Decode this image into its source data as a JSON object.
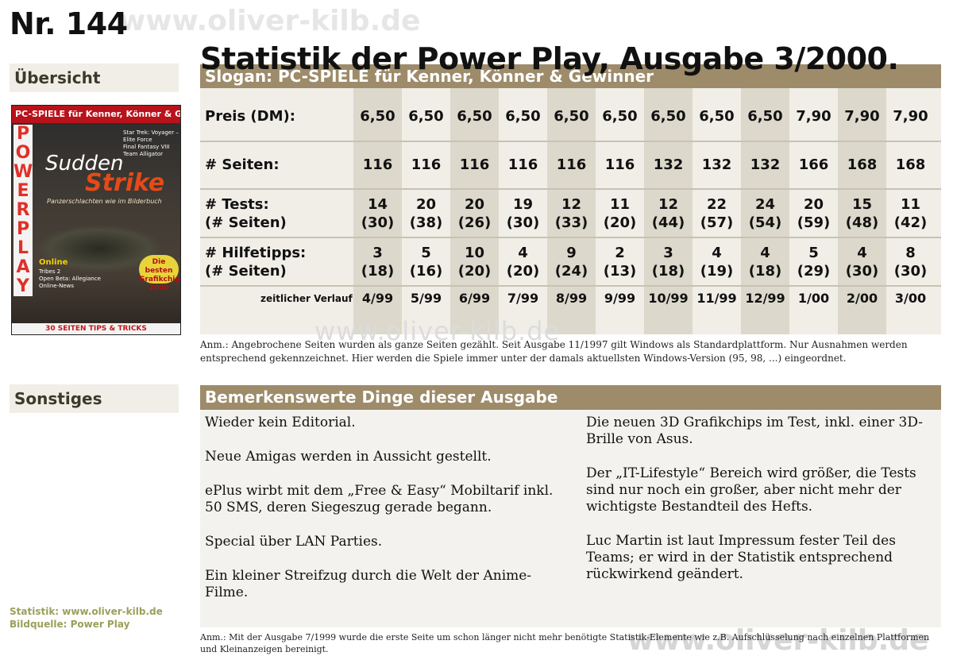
{
  "header": {
    "issue_no": "Nr. 144",
    "title": "Statistik der Power Play, Ausgabe 3/2000."
  },
  "sidebar": {
    "overview": "Übersicht",
    "misc": "Sonstiges",
    "credit_stats": "Statistik: www.oliver-kilb.de",
    "credit_image": "Bildquelle: Power Play"
  },
  "cover": {
    "band": "PC-SPIELE für Kenner, Könner & Gewinner",
    "magazine": [
      "P",
      "O",
      "W",
      "E",
      "R",
      "P",
      "L",
      "A",
      "Y"
    ],
    "headline1": "Sudden",
    "headline2": "Strike",
    "tagline": "Panzerschlachten wie im Bilderbuch",
    "side_items": [
      "Star Trek: Voyager – Elite Force",
      "Final Fantasy VIII",
      "Team Alligator"
    ],
    "online": "Online",
    "online_items": [
      "Tribes 2",
      "Open Beta: Allegiance",
      "Online-News"
    ],
    "badge": "Die besten Grafikchips 2000",
    "bottom": "30 SEITEN TIPS & TRICKS"
  },
  "stats": {
    "slogan": "Slogan: PC-SPIELE für Kenner, Könner & Gewinner",
    "row_price": "Preis (DM):",
    "row_pages": "# Seiten:",
    "row_tests_1": "# Tests:",
    "row_tests_2": "(# Seiten)",
    "row_tips_1": "# Hilfetipps:",
    "row_tips_2": "(# Seiten)",
    "timeline_label": "zeitlicher Verlauf",
    "columns": [
      {
        "issue": "4/99",
        "price": "6,50",
        "pages": "116",
        "tests": "14",
        "tests_pages": "(30)",
        "tips": "3",
        "tips_pages": "(18)"
      },
      {
        "issue": "5/99",
        "price": "6,50",
        "pages": "116",
        "tests": "20",
        "tests_pages": "(38)",
        "tips": "5",
        "tips_pages": "(16)"
      },
      {
        "issue": "6/99",
        "price": "6,50",
        "pages": "116",
        "tests": "20",
        "tests_pages": "(26)",
        "tips": "10",
        "tips_pages": "(20)"
      },
      {
        "issue": "7/99",
        "price": "6,50",
        "pages": "116",
        "tests": "19",
        "tests_pages": "(30)",
        "tips": "4",
        "tips_pages": "(20)"
      },
      {
        "issue": "8/99",
        "price": "6,50",
        "pages": "116",
        "tests": "12",
        "tests_pages": "(33)",
        "tips": "9",
        "tips_pages": "(24)"
      },
      {
        "issue": "9/99",
        "price": "6,50",
        "pages": "116",
        "tests": "11",
        "tests_pages": "(20)",
        "tips": "2",
        "tips_pages": "(13)"
      },
      {
        "issue": "10/99",
        "price": "6,50",
        "pages": "132",
        "tests": "12",
        "tests_pages": "(44)",
        "tips": "3",
        "tips_pages": "(18)"
      },
      {
        "issue": "11/99",
        "price": "6,50",
        "pages": "132",
        "tests": "22",
        "tests_pages": "(57)",
        "tips": "4",
        "tips_pages": "(19)"
      },
      {
        "issue": "12/99",
        "price": "6,50",
        "pages": "132",
        "tests": "24",
        "tests_pages": "(54)",
        "tips": "4",
        "tips_pages": "(18)"
      },
      {
        "issue": "1/00",
        "price": "7,90",
        "pages": "166",
        "tests": "20",
        "tests_pages": "(59)",
        "tips": "5",
        "tips_pages": "(29)"
      },
      {
        "issue": "2/00",
        "price": "7,90",
        "pages": "168",
        "tests": "15",
        "tests_pages": "(48)",
        "tips": "4",
        "tips_pages": "(30)"
      },
      {
        "issue": "3/00",
        "price": "7,90",
        "pages": "168",
        "tests": "11",
        "tests_pages": "(42)",
        "tips": "8",
        "tips_pages": "(30)"
      }
    ]
  },
  "notes": {
    "note1": "Anm.: Angebrochene Seiten wurden als ganze Seiten gezählt. Seit Ausgabe 11/1997 gilt Windows als Standardplattform. Nur Ausnahmen werden entsprechend gekennzeichnet. Hier werden die Spiele immer unter der damals aktuellsten Windows-Version (95, 98, ...) eingeordnet.",
    "note2": "Anm.: Mit der Ausgabe 7/1999 wurde die erste Seite um schon länger nicht mehr benötigte Statistik-Elemente wie z.B. Aufschlüsselung nach einzelnen Plattformen und Kleinanzeigen bereinigt."
  },
  "remarks": {
    "title": "Bemerkenswerte Dinge dieser Ausgabe",
    "left": [
      "Wieder kein Editorial.",
      "Neue Amigas werden in Aussicht gestellt.",
      "ePlus wirbt mit dem „Free & Easy“ Mobiltarif inkl. 50 SMS, deren Siegeszug gerade begann.",
      "Special über LAN Parties.",
      "Ein kleiner Streifzug durch die Welt der Anime-Filme."
    ],
    "right": [
      "Die neuen 3D Grafikchips im Test, inkl. einer 3D-Brille von Asus.",
      "Der „IT-Lifestyle“ Bereich wird größer, die Tests sind nur noch ein großer, aber nicht mehr der wichtigste Bestandteil des Hefts.",
      "Luc Martin ist laut Impressum fester Teil des Teams; er wird in der Statistik entsprechend rückwirkend geändert."
    ]
  },
  "watermark": "www.oliver-kilb.de"
}
